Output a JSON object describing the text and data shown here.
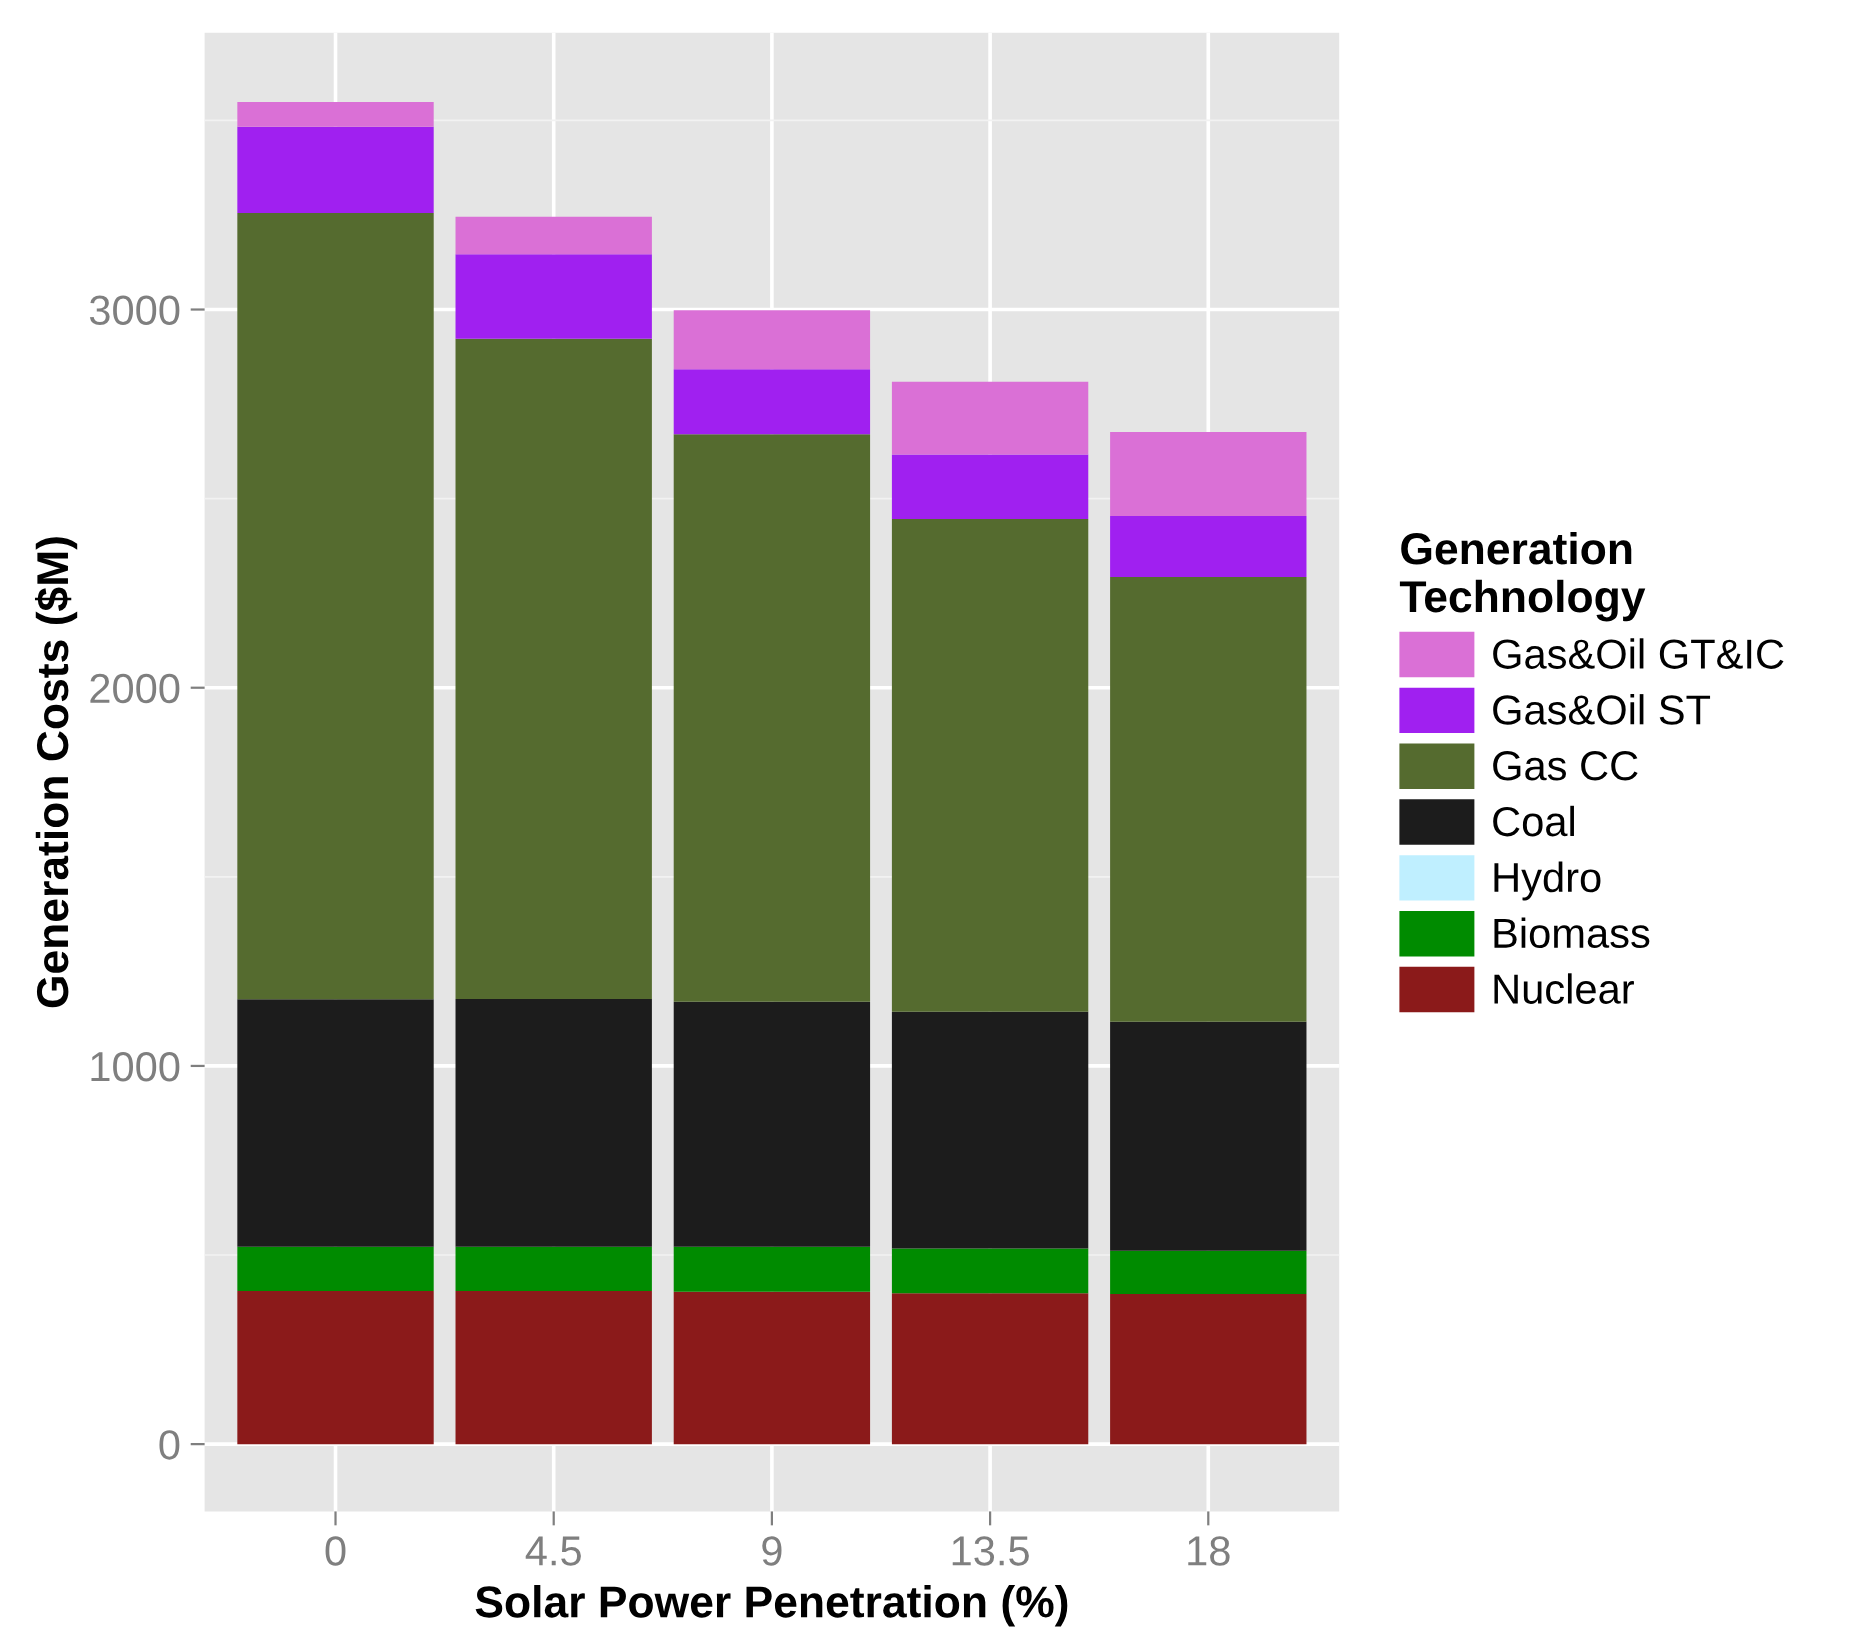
{
  "chart_data": {
    "type": "bar",
    "stacked": true,
    "xlabel": "Solar Power Penetration (%)",
    "ylabel": "Generation Costs ($M)",
    "legend_title": "Generation\nTechnology",
    "legend": "right",
    "grid": true,
    "categories": [
      "0",
      "4.5",
      "9",
      "13.5",
      "18"
    ],
    "ylim": [
      -178,
      3732
    ],
    "yticks": [
      0,
      1000,
      2000,
      3000
    ],
    "series": [
      {
        "name": "Nuclear",
        "color": "#8b1a1a",
        "values": [
          405,
          405,
          403,
          399,
          397
        ]
      },
      {
        "name": "Biomass",
        "color": "#008b00",
        "values": [
          117,
          117,
          119,
          118,
          114
        ]
      },
      {
        "name": "Hydro",
        "color": "#bfefff",
        "values": [
          null,
          null,
          null,
          null,
          null
        ]
      },
      {
        "name": "Coal",
        "color": "#1c1c1c",
        "values": [
          654,
          655,
          648,
          626,
          606
        ]
      },
      {
        "name": "Gas CC",
        "color": "#556b2f",
        "values": [
          2079,
          1746,
          1500,
          1303,
          1176
        ]
      },
      {
        "name": "Gas&Oil ST",
        "color": "#a020f0",
        "values": [
          228,
          223,
          172,
          171,
          161
        ]
      },
      {
        "name": "Gas&Oil GT&IC",
        "color": "#da70d6",
        "values": [
          66,
          99,
          156,
          192,
          222
        ]
      }
    ]
  }
}
